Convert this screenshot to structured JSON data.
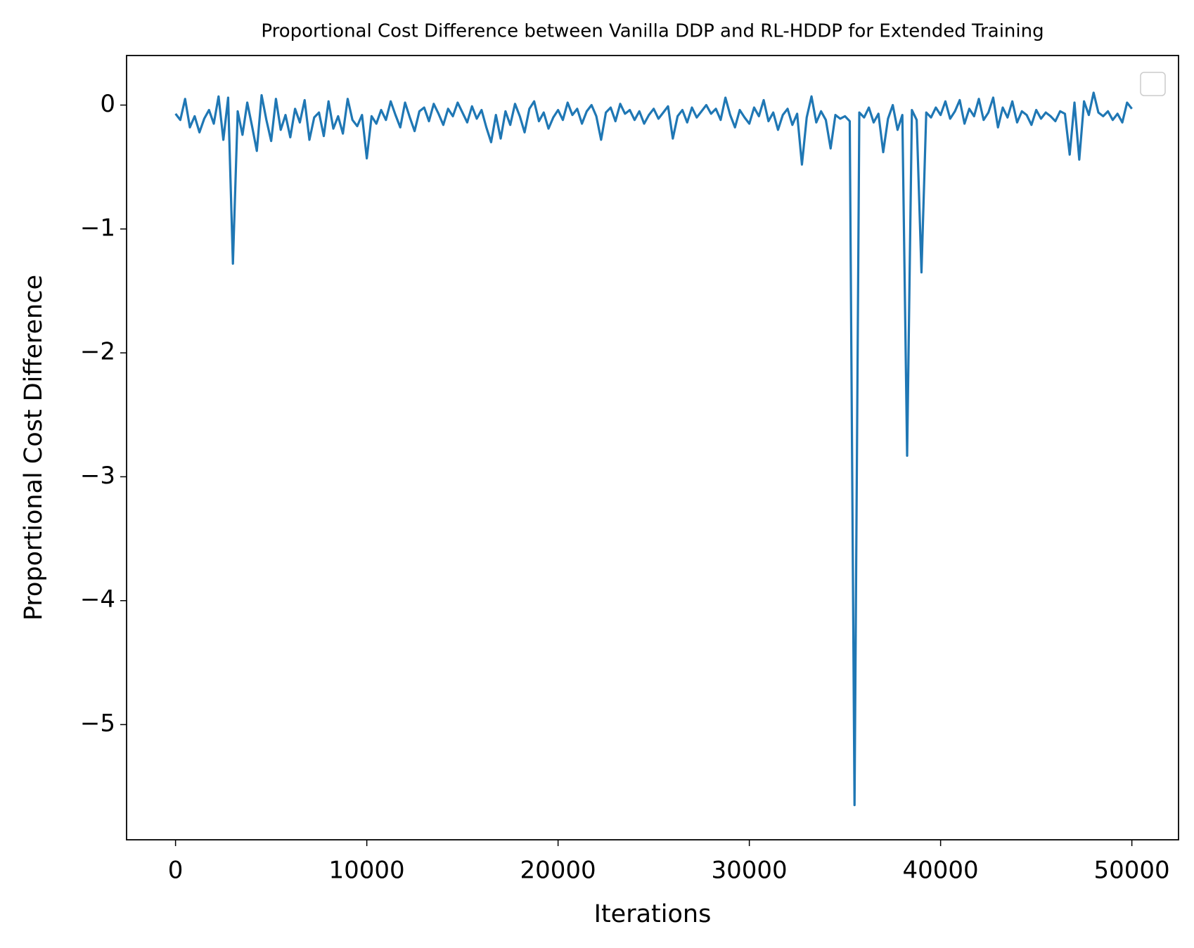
{
  "chart_data": {
    "type": "line",
    "title": "Proportional Cost Difference between Vanilla DDP and RL-HDDP for Extended Training",
    "x_label": "Iterations",
    "y_label": "Proportional Cost Difference",
    "x": [
      0,
      250,
      500,
      750,
      1000,
      1250,
      1500,
      1750,
      2000,
      2250,
      2500,
      2750,
      3000,
      3250,
      3500,
      3750,
      4000,
      4250,
      4500,
      4750,
      5000,
      5250,
      5500,
      5750,
      6000,
      6250,
      6500,
      6750,
      7000,
      7250,
      7500,
      7750,
      8000,
      8250,
      8500,
      8750,
      9000,
      9250,
      9500,
      9750,
      10000,
      10250,
      10500,
      10750,
      11000,
      11250,
      11500,
      11750,
      12000,
      12250,
      12500,
      12750,
      13000,
      13250,
      13500,
      13750,
      14000,
      14250,
      14500,
      14750,
      15000,
      15250,
      15500,
      15750,
      16000,
      16250,
      16500,
      16750,
      17000,
      17250,
      17500,
      17750,
      18000,
      18250,
      18500,
      18750,
      19000,
      19250,
      19500,
      19750,
      20000,
      20250,
      20500,
      20750,
      21000,
      21250,
      21500,
      21750,
      22000,
      22250,
      22500,
      22750,
      23000,
      23250,
      23500,
      23750,
      24000,
      24250,
      24500,
      24750,
      25000,
      25250,
      25500,
      25750,
      26000,
      26250,
      26500,
      26750,
      27000,
      27250,
      27500,
      27750,
      28000,
      28250,
      28500,
      28750,
      29000,
      29250,
      29500,
      29750,
      30000,
      30250,
      30500,
      30750,
      31000,
      31250,
      31500,
      31750,
      32000,
      32250,
      32500,
      32750,
      33000,
      33250,
      33500,
      33750,
      34000,
      34250,
      34500,
      34750,
      35000,
      35250,
      35500,
      35750,
      36000,
      36250,
      36500,
      36750,
      37000,
      37250,
      37500,
      37750,
      38000,
      38250,
      38500,
      38750,
      39000,
      39250,
      39500,
      39750,
      40000,
      40250,
      40500,
      40750,
      41000,
      41250,
      41500,
      41750,
      42000,
      42250,
      42500,
      42750,
      43000,
      43250,
      43500,
      43750,
      44000,
      44250,
      44500,
      44750,
      45000,
      45250,
      45500,
      45750,
      46000,
      46250,
      46500,
      46750,
      47000,
      47250,
      47500,
      47750,
      48000,
      48250,
      48500,
      48750,
      49000,
      49250,
      49500,
      49750,
      50000
    ],
    "series": [
      {
        "color": "#1f77b4",
        "values": [
          -0.07,
          -0.12,
          0.05,
          -0.18,
          -0.09,
          -0.22,
          -0.11,
          -0.04,
          -0.15,
          0.07,
          -0.28,
          0.06,
          -1.28,
          -0.05,
          -0.24,
          0.02,
          -0.17,
          -0.37,
          0.08,
          -0.12,
          -0.29,
          0.05,
          -0.2,
          -0.08,
          -0.26,
          -0.03,
          -0.14,
          0.04,
          -0.28,
          -0.1,
          -0.06,
          -0.25,
          0.03,
          -0.19,
          -0.09,
          -0.23,
          0.05,
          -0.12,
          -0.17,
          -0.08,
          -0.43,
          -0.09,
          -0.15,
          -0.04,
          -0.12,
          0.03,
          -0.08,
          -0.18,
          0.02,
          -0.1,
          -0.21,
          -0.05,
          -0.02,
          -0.13,
          0.01,
          -0.07,
          -0.16,
          -0.03,
          -0.09,
          0.02,
          -0.06,
          -0.14,
          -0.01,
          -0.11,
          -0.04,
          -0.18,
          -0.3,
          -0.08,
          -0.27,
          -0.05,
          -0.16,
          0.01,
          -0.09,
          -0.22,
          -0.03,
          0.03,
          -0.13,
          -0.06,
          -0.19,
          -0.1,
          -0.04,
          -0.12,
          0.02,
          -0.08,
          -0.03,
          -0.15,
          -0.05,
          0.0,
          -0.09,
          -0.28,
          -0.06,
          -0.02,
          -0.13,
          0.01,
          -0.07,
          -0.04,
          -0.12,
          -0.05,
          -0.15,
          -0.08,
          -0.03,
          -0.11,
          -0.06,
          -0.01,
          -0.27,
          -0.09,
          -0.04,
          -0.14,
          -0.02,
          -0.1,
          -0.05,
          0.0,
          -0.07,
          -0.03,
          -0.12,
          0.06,
          -0.08,
          -0.18,
          -0.04,
          -0.1,
          -0.15,
          -0.02,
          -0.09,
          0.04,
          -0.13,
          -0.06,
          -0.2,
          -0.08,
          -0.03,
          -0.16,
          -0.07,
          -0.48,
          -0.1,
          0.07,
          -0.14,
          -0.05,
          -0.12,
          -0.35,
          -0.08,
          -0.11,
          -0.09,
          -0.13,
          -5.65,
          -0.06,
          -0.1,
          -0.02,
          -0.14,
          -0.07,
          -0.38,
          -0.11,
          0.0,
          -0.2,
          -0.08,
          -2.83,
          -0.04,
          -0.12,
          -1.35,
          -0.06,
          -0.1,
          -0.02,
          -0.08,
          0.03,
          -0.11,
          -0.05,
          0.04,
          -0.15,
          -0.03,
          -0.09,
          0.05,
          -0.12,
          -0.06,
          0.06,
          -0.18,
          -0.02,
          -0.1,
          0.03,
          -0.14,
          -0.05,
          -0.08,
          -0.16,
          -0.04,
          -0.11,
          -0.06,
          -0.09,
          -0.13,
          -0.05,
          -0.07,
          -0.4,
          0.02,
          -0.44,
          0.03,
          -0.08,
          0.1,
          -0.06,
          -0.09,
          -0.05,
          -0.12,
          -0.07,
          -0.14,
          0.02,
          -0.03
        ]
      }
    ],
    "xlim": [
      -2560,
      52440
    ],
    "ylim": [
      -5.93,
      0.4
    ],
    "xticks": [
      0,
      10000,
      20000,
      30000,
      40000,
      50000
    ],
    "yticks": [
      {
        "value": -5,
        "label": "−5"
      },
      {
        "value": -4,
        "label": "−4"
      },
      {
        "value": -3,
        "label": "−3"
      },
      {
        "value": -2,
        "label": "−2"
      },
      {
        "value": -1,
        "label": "−1"
      },
      0
    ],
    "grid": false
  }
}
